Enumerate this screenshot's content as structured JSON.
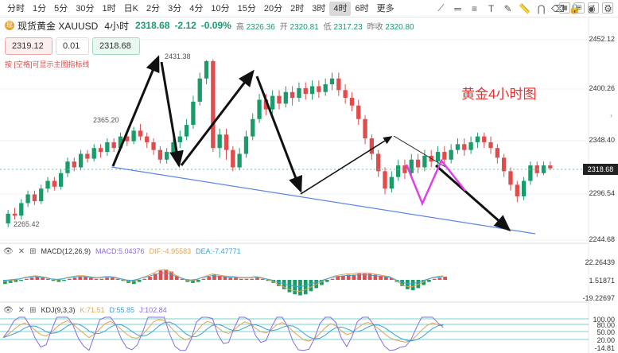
{
  "timeframes": {
    "items": [
      "分时",
      "1分",
      "5分",
      "30分",
      "1时",
      "日K",
      "2分",
      "3分",
      "4分",
      "10分",
      "15分",
      "20分",
      "2时",
      "3时",
      "4时",
      "6时",
      "更多"
    ],
    "active_index": 14
  },
  "toolbar_icons": [
    "draw-line-icon",
    "horizontal-line-icon",
    "fib-icon",
    "text-icon",
    "brush-icon",
    "ruler-icon",
    "magnet-icon",
    "eraser-icon",
    "lock-icon",
    "eye-icon",
    "settings-icon"
  ],
  "symbol": {
    "icon_text": "现",
    "name": "现货黄金 XAUUSD",
    "period": "4小时",
    "price": "2318.68",
    "change": "-2.12",
    "change_pct": "-0.09%",
    "high_label": "高",
    "high": "2326.36",
    "open_label": "开",
    "open": "2320.81",
    "low_label": "低",
    "low": "2317.23",
    "prev_label": "昨收",
    "prev": "2320.80"
  },
  "order": {
    "sell_price": "2319.12",
    "quantity": "0.01",
    "buy_price": "2318.68",
    "hint": "按 [空格]可显示主图指标线"
  },
  "annotations": {
    "high_left": "2365.20",
    "peak": "2431.38",
    "low_left": "2265.42",
    "title": "黄金4小时图"
  },
  "price_axis": {
    "labels": [
      "2452.12",
      "2400.26",
      "2348.40",
      "2296.54",
      "2244.68"
    ],
    "current": "2318.68"
  },
  "macd": {
    "title": "MACD(12,26,9)",
    "macd": "MACD:5.04376",
    "dif": "DIF:-4.95583",
    "dea": "DEA:-7.47771",
    "axis": [
      "22.26439",
      "1.51871",
      "-19.22697"
    ]
  },
  "kdj": {
    "title": "KDJ(9,3,3)",
    "k": "K:71.51",
    "d": "D:55.85",
    "j": "J:102.84",
    "axis": [
      "100.00",
      "80.00",
      "50.00",
      "20.00",
      "-14.81"
    ]
  },
  "colors": {
    "up": "#1a9c6a",
    "down": "#e04b4b",
    "trend": "#5b86e5",
    "magenta": "#e23fe6",
    "title_red": "#e3312f"
  },
  "candles": [
    [
      2262,
      2272,
      2258,
      2276
    ],
    [
      2272,
      2270,
      2266,
      2278
    ],
    [
      2270,
      2283,
      2266,
      2287
    ],
    [
      2283,
      2292,
      2279,
      2296
    ],
    [
      2292,
      2285,
      2281,
      2296
    ],
    [
      2285,
      2298,
      2282,
      2302
    ],
    [
      2298,
      2306,
      2294,
      2310
    ],
    [
      2306,
      2300,
      2296,
      2310
    ],
    [
      2300,
      2314,
      2297,
      2318
    ],
    [
      2314,
      2326,
      2310,
      2330
    ],
    [
      2326,
      2320,
      2316,
      2330
    ],
    [
      2320,
      2334,
      2317,
      2338
    ],
    [
      2334,
      2329,
      2325,
      2338
    ],
    [
      2329,
      2340,
      2326,
      2344
    ],
    [
      2340,
      2336,
      2330,
      2344
    ],
    [
      2336,
      2346,
      2332,
      2350
    ],
    [
      2346,
      2340,
      2336,
      2350
    ],
    [
      2340,
      2352,
      2337,
      2356
    ],
    [
      2352,
      2347,
      2342,
      2356
    ],
    [
      2347,
      2358,
      2344,
      2362
    ],
    [
      2358,
      2352,
      2348,
      2365
    ],
    [
      2352,
      2346,
      2340,
      2356
    ],
    [
      2346,
      2338,
      2333,
      2350
    ],
    [
      2338,
      2328,
      2324,
      2342
    ],
    [
      2328,
      2336,
      2324,
      2340
    ],
    [
      2336,
      2346,
      2332,
      2350
    ],
    [
      2346,
      2352,
      2340,
      2358
    ],
    [
      2352,
      2364,
      2348,
      2370
    ],
    [
      2364,
      2388,
      2360,
      2394
    ],
    [
      2388,
      2412,
      2384,
      2418
    ],
    [
      2412,
      2430,
      2406,
      2431
    ],
    [
      2430,
      2340,
      2336,
      2432
    ],
    [
      2340,
      2354,
      2330,
      2360
    ],
    [
      2354,
      2338,
      2328,
      2360
    ],
    [
      2338,
      2320,
      2316,
      2342
    ],
    [
      2320,
      2334,
      2317,
      2340
    ],
    [
      2334,
      2352,
      2330,
      2358
    ],
    [
      2352,
      2370,
      2348,
      2376
    ],
    [
      2370,
      2390,
      2366,
      2396
    ],
    [
      2390,
      2380,
      2374,
      2396
    ],
    [
      2380,
      2394,
      2376,
      2400
    ],
    [
      2394,
      2386,
      2380,
      2400
    ],
    [
      2386,
      2398,
      2382,
      2404
    ],
    [
      2398,
      2392,
      2384,
      2404
    ],
    [
      2392,
      2402,
      2388,
      2408
    ],
    [
      2402,
      2396,
      2390,
      2408
    ],
    [
      2396,
      2404,
      2390,
      2410
    ],
    [
      2404,
      2398,
      2392,
      2410
    ],
    [
      2398,
      2406,
      2394,
      2412
    ],
    [
      2406,
      2412,
      2400,
      2418
    ],
    [
      2412,
      2400,
      2394,
      2418
    ],
    [
      2400,
      2392,
      2386,
      2406
    ],
    [
      2392,
      2384,
      2378,
      2398
    ],
    [
      2384,
      2370,
      2364,
      2390
    ],
    [
      2370,
      2350,
      2344,
      2374
    ],
    [
      2350,
      2334,
      2328,
      2354
    ],
    [
      2334,
      2316,
      2310,
      2338
    ],
    [
      2316,
      2298,
      2292,
      2320
    ],
    [
      2298,
      2310,
      2294,
      2316
    ],
    [
      2310,
      2322,
      2306,
      2328
    ],
    [
      2322,
      2314,
      2308,
      2328
    ],
    [
      2314,
      2328,
      2310,
      2334
    ],
    [
      2328,
      2320,
      2314,
      2334
    ],
    [
      2320,
      2332,
      2316,
      2338
    ],
    [
      2332,
      2326,
      2320,
      2338
    ],
    [
      2326,
      2336,
      2322,
      2342
    ],
    [
      2336,
      2328,
      2322,
      2342
    ],
    [
      2328,
      2338,
      2324,
      2344
    ],
    [
      2338,
      2344,
      2334,
      2350
    ],
    [
      2344,
      2338,
      2332,
      2350
    ],
    [
      2338,
      2346,
      2334,
      2352
    ],
    [
      2346,
      2352,
      2340,
      2356
    ],
    [
      2352,
      2346,
      2340,
      2356
    ],
    [
      2346,
      2340,
      2334,
      2352
    ],
    [
      2340,
      2330,
      2324,
      2344
    ],
    [
      2330,
      2316,
      2310,
      2334
    ],
    [
      2316,
      2302,
      2296,
      2320
    ],
    [
      2302,
      2290,
      2284,
      2306
    ],
    [
      2290,
      2306,
      2286,
      2310
    ],
    [
      2306,
      2322,
      2302,
      2326
    ],
    [
      2322,
      2314,
      2310,
      2326
    ],
    [
      2314,
      2322,
      2312,
      2326
    ],
    [
      2322,
      2319,
      2317,
      2326
    ]
  ],
  "macd_hist": [
    -4,
    -3,
    -2,
    -1,
    1,
    2,
    3,
    2,
    1,
    -1,
    -2,
    -1,
    1,
    2,
    3,
    3,
    2,
    1,
    1,
    2,
    2,
    1,
    -1,
    -3,
    -4,
    -2,
    1,
    3,
    6,
    9,
    10,
    8,
    4,
    1,
    -2,
    -3,
    -2,
    1,
    3,
    5,
    4,
    3,
    2,
    2,
    1,
    1,
    1,
    2,
    1,
    -1,
    -3,
    -6,
    -9,
    -12,
    -14,
    -15,
    -14,
    -11,
    -8,
    -5,
    -2,
    1,
    3,
    4,
    5,
    5,
    6,
    6,
    6,
    5,
    4,
    3,
    2,
    -2,
    -6,
    -9,
    -10,
    -8,
    -5,
    -2,
    1,
    2,
    3
  ],
  "kdj_k": [
    30,
    42,
    58,
    72,
    80,
    70,
    55,
    40,
    35,
    48,
    66,
    80,
    88,
    76,
    60,
    45,
    30,
    42,
    60,
    78,
    86,
    74,
    58,
    42,
    30,
    28,
    40,
    62,
    84,
    92,
    88,
    70,
    50,
    32,
    22,
    30,
    50,
    72,
    86,
    80,
    64,
    50,
    44,
    56,
    72,
    84,
    78,
    62,
    50,
    46,
    58,
    74,
    82,
    70,
    52,
    36,
    22,
    18,
    26,
    44,
    64,
    78,
    70,
    54,
    40,
    46,
    62,
    76,
    82,
    74,
    60,
    44,
    30,
    22,
    18,
    14,
    20,
    36,
    56,
    72,
    80,
    74,
    71
  ]
}
